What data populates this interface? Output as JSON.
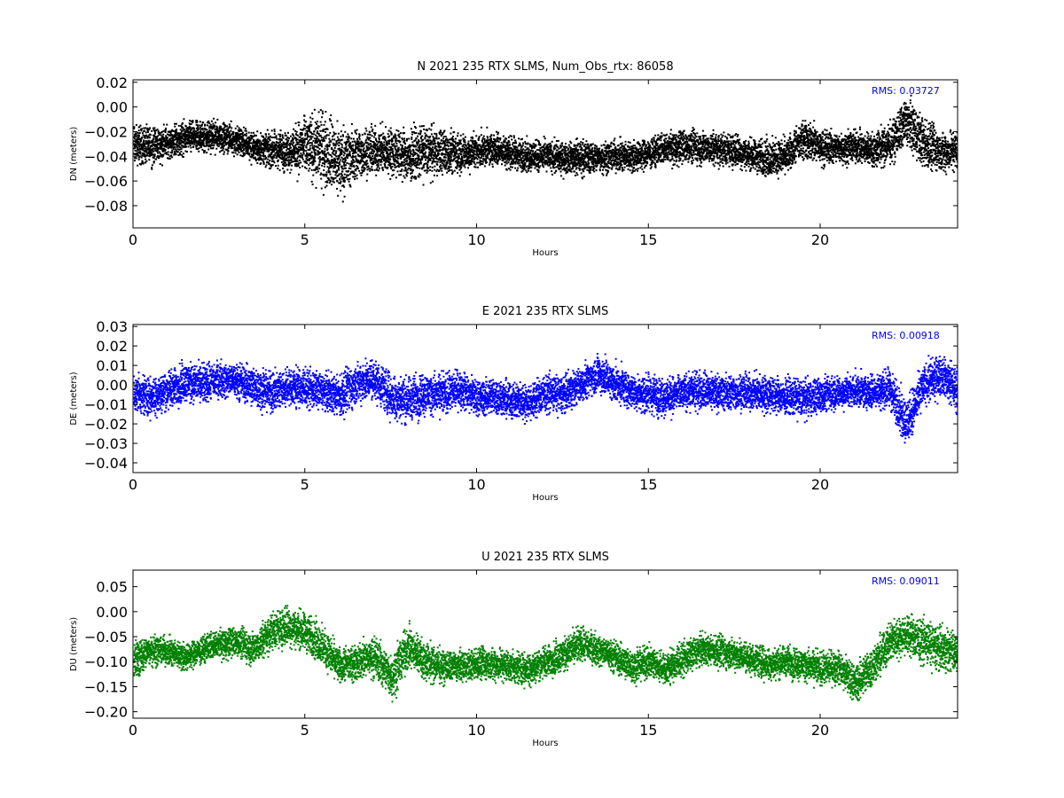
{
  "chart_data": [
    {
      "type": "scatter",
      "title": "N 2021 235 RTX  SLMS, Num_Obs_rtx: 86058",
      "xlabel": "Hours",
      "ylabel": "DN (meters)",
      "xlim": [
        0,
        24
      ],
      "ylim": [
        -0.098,
        0.022
      ],
      "x_ticks": [
        0,
        5,
        10,
        15,
        20
      ],
      "y_ticks": [
        0.02,
        0.0,
        -0.02,
        -0.04,
        -0.06,
        -0.08
      ],
      "y_tick_labels": [
        "0.02",
        "0.00",
        "−0.02",
        "−0.04",
        "−0.06",
        "−0.08"
      ],
      "annotation": "RMS:  0.03727",
      "color": "#000000",
      "grid": false,
      "series": [
        {
          "x": [
            0,
            0.5,
            1,
            1.5,
            2,
            2.5,
            3,
            3.5,
            4,
            4.5,
            5,
            5.5,
            6,
            6.5,
            7,
            7.5,
            8,
            8.5,
            9,
            9.5,
            10,
            10.5,
            11,
            11.5,
            12,
            12.5,
            13,
            13.5,
            14,
            14.5,
            15,
            15.5,
            16,
            16.5,
            17,
            17.5,
            18,
            18.5,
            19,
            19.5,
            20,
            20.5,
            21,
            21.5,
            22,
            22.5,
            23,
            23.5,
            24
          ],
          "center": [
            -0.031,
            -0.031,
            -0.029,
            -0.025,
            -0.024,
            -0.024,
            -0.027,
            -0.033,
            -0.035,
            -0.035,
            -0.032,
            -0.035,
            -0.045,
            -0.038,
            -0.036,
            -0.036,
            -0.04,
            -0.036,
            -0.036,
            -0.038,
            -0.036,
            -0.034,
            -0.038,
            -0.04,
            -0.04,
            -0.042,
            -0.041,
            -0.041,
            -0.04,
            -0.04,
            -0.037,
            -0.034,
            -0.032,
            -0.033,
            -0.034,
            -0.036,
            -0.039,
            -0.042,
            -0.04,
            -0.025,
            -0.033,
            -0.033,
            -0.032,
            -0.035,
            -0.03,
            -0.012,
            -0.03,
            -0.037,
            -0.035
          ],
          "spread": [
            0.022,
            0.022,
            0.018,
            0.018,
            0.018,
            0.016,
            0.016,
            0.018,
            0.02,
            0.022,
            0.036,
            0.04,
            0.04,
            0.03,
            0.026,
            0.026,
            0.03,
            0.028,
            0.024,
            0.022,
            0.02,
            0.018,
            0.018,
            0.018,
            0.018,
            0.018,
            0.02,
            0.018,
            0.018,
            0.018,
            0.018,
            0.018,
            0.018,
            0.018,
            0.018,
            0.018,
            0.018,
            0.022,
            0.02,
            0.022,
            0.02,
            0.018,
            0.018,
            0.02,
            0.022,
            0.03,
            0.03,
            0.022,
            0.022
          ]
        }
      ]
    },
    {
      "type": "scatter",
      "title": "E 2021 235 RTX  SLMS",
      "xlabel": "Hours",
      "ylabel": "DE (meters)",
      "xlim": [
        0,
        24
      ],
      "ylim": [
        -0.045,
        0.031
      ],
      "x_ticks": [
        0,
        5,
        10,
        15,
        20
      ],
      "y_ticks": [
        0.03,
        0.02,
        0.01,
        0.0,
        -0.01,
        -0.02,
        -0.03,
        -0.04
      ],
      "y_tick_labels": [
        "0.03",
        "0.02",
        "0.01",
        "0.00",
        "−0.01",
        "−0.02",
        "−0.03",
        "−0.04"
      ],
      "annotation": "RMS:  0.00918",
      "color": "#0000ff",
      "grid": false,
      "series": [
        {
          "x": [
            0,
            0.5,
            1,
            1.5,
            2,
            2.5,
            3,
            3.5,
            4,
            4.5,
            5,
            5.5,
            6,
            6.5,
            7,
            7.5,
            8,
            8.5,
            9,
            9.5,
            10,
            10.5,
            11,
            11.5,
            12,
            12.5,
            13,
            13.5,
            14,
            14.5,
            15,
            15.5,
            16,
            16.5,
            17,
            17.5,
            18,
            18.5,
            19,
            19.5,
            20,
            20.5,
            21,
            21.5,
            22,
            22.5,
            23,
            23.5,
            24
          ],
          "center": [
            -0.004,
            -0.006,
            -0.003,
            0.002,
            0.0,
            0.003,
            0.002,
            -0.001,
            -0.004,
            -0.001,
            -0.002,
            -0.003,
            -0.006,
            0.001,
            0.003,
            -0.006,
            -0.008,
            -0.004,
            -0.005,
            -0.002,
            -0.007,
            -0.006,
            -0.008,
            -0.009,
            -0.004,
            -0.005,
            0.0,
            0.006,
            0.001,
            -0.003,
            -0.005,
            -0.006,
            -0.004,
            -0.003,
            -0.004,
            -0.004,
            -0.004,
            -0.005,
            -0.006,
            -0.007,
            -0.005,
            -0.004,
            -0.003,
            -0.004,
            -0.002,
            -0.02,
            0.0,
            0.005,
            -0.003
          ],
          "spread": [
            0.014,
            0.014,
            0.014,
            0.014,
            0.013,
            0.013,
            0.013,
            0.014,
            0.014,
            0.014,
            0.013,
            0.013,
            0.016,
            0.015,
            0.015,
            0.016,
            0.017,
            0.015,
            0.014,
            0.013,
            0.013,
            0.013,
            0.013,
            0.013,
            0.013,
            0.013,
            0.013,
            0.014,
            0.013,
            0.013,
            0.014,
            0.014,
            0.013,
            0.013,
            0.013,
            0.013,
            0.013,
            0.013,
            0.013,
            0.013,
            0.012,
            0.012,
            0.012,
            0.012,
            0.014,
            0.018,
            0.015,
            0.015,
            0.015
          ]
        }
      ]
    },
    {
      "type": "scatter",
      "title": "U 2021 235 RTX  SLMS",
      "xlabel": "Hours",
      "ylabel": "DU (meters)",
      "xlim": [
        0,
        24
      ],
      "ylim": [
        -0.213,
        0.083
      ],
      "x_ticks": [
        0,
        5,
        10,
        15,
        20
      ],
      "y_ticks": [
        0.05,
        0.0,
        -0.05,
        -0.1,
        -0.15,
        -0.2
      ],
      "y_tick_labels": [
        "0.05",
        "0.00",
        "−0.05",
        "−0.10",
        "−0.15",
        "−0.20"
      ],
      "annotation": "RMS:  0.09011",
      "color": "#008000",
      "grid": false,
      "series": [
        {
          "x": [
            0,
            0.5,
            1,
            1.5,
            2,
            2.5,
            3,
            3.5,
            4,
            4.5,
            5,
            5.5,
            6,
            6.5,
            7,
            7.5,
            8,
            8.5,
            9,
            9.5,
            10,
            10.5,
            11,
            11.5,
            12,
            12.5,
            13,
            13.5,
            14,
            14.5,
            15,
            15.5,
            16,
            16.5,
            17,
            17.5,
            18,
            18.5,
            19,
            19.5,
            20,
            20.5,
            21,
            21.5,
            22,
            22.5,
            23,
            23.5,
            24
          ],
          "center": [
            -0.1,
            -0.075,
            -0.08,
            -0.09,
            -0.075,
            -0.065,
            -0.06,
            -0.075,
            -0.04,
            -0.03,
            -0.04,
            -0.07,
            -0.11,
            -0.1,
            -0.09,
            -0.13,
            -0.07,
            -0.1,
            -0.11,
            -0.11,
            -0.105,
            -0.105,
            -0.11,
            -0.115,
            -0.1,
            -0.085,
            -0.065,
            -0.075,
            -0.09,
            -0.11,
            -0.1,
            -0.115,
            -0.095,
            -0.075,
            -0.08,
            -0.085,
            -0.095,
            -0.105,
            -0.1,
            -0.105,
            -0.115,
            -0.11,
            -0.145,
            -0.11,
            -0.06,
            -0.045,
            -0.06,
            -0.075,
            -0.08
          ],
          "spread": [
            0.06,
            0.045,
            0.04,
            0.04,
            0.04,
            0.04,
            0.04,
            0.045,
            0.05,
            0.055,
            0.055,
            0.055,
            0.05,
            0.05,
            0.055,
            0.065,
            0.06,
            0.055,
            0.045,
            0.045,
            0.045,
            0.045,
            0.045,
            0.045,
            0.045,
            0.045,
            0.045,
            0.045,
            0.045,
            0.045,
            0.045,
            0.045,
            0.045,
            0.045,
            0.045,
            0.045,
            0.045,
            0.045,
            0.045,
            0.045,
            0.045,
            0.045,
            0.055,
            0.055,
            0.055,
            0.055,
            0.06,
            0.06,
            0.06
          ]
        }
      ]
    }
  ]
}
